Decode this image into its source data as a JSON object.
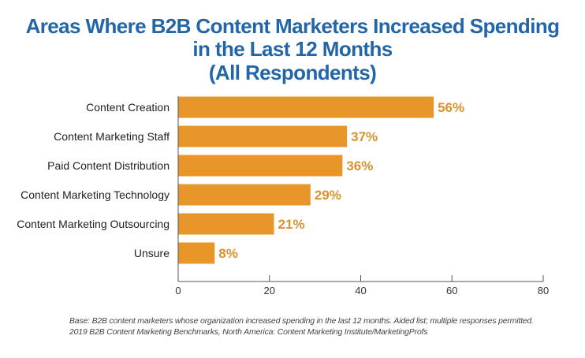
{
  "chart_data": {
    "type": "bar",
    "orientation": "horizontal",
    "title_lines": [
      "Areas Where B2B Content Marketers Increased Spending",
      "in the Last 12 Months",
      "(All Respondents)"
    ],
    "categories": [
      "Content Creation",
      "Content Marketing Staff",
      "Paid Content Distribution",
      "Content Marketing Technology",
      "Content Marketing Outsourcing",
      "Unsure"
    ],
    "values": [
      56,
      37,
      36,
      29,
      21,
      8
    ],
    "data_labels": [
      "56%",
      "37%",
      "36%",
      "29%",
      "21%",
      "8%"
    ],
    "xlim": [
      0,
      80
    ],
    "xticks": [
      0,
      20,
      40,
      60,
      80
    ],
    "xlabel": "",
    "ylabel": "",
    "grid": false,
    "bar_color": "#e8962a",
    "label_color": "#d9922e",
    "title_color": "#2366a8"
  },
  "footnotes": [
    "Base: B2B content marketers whose organization increased spending in the last 12 months. Aided list; multiple responses permitted.",
    "2019 B2B Content Marketing Benchmarks, North America: Content Marketing Institute/MarketingProfs"
  ]
}
